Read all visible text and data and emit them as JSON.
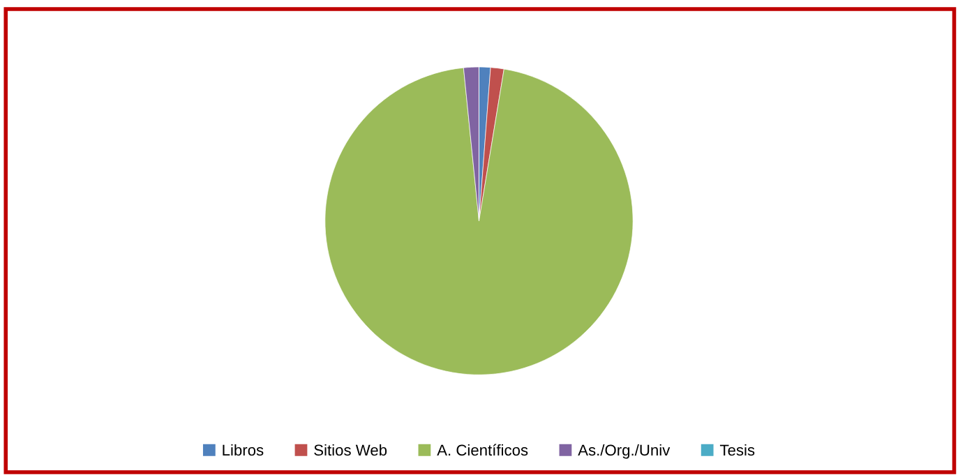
{
  "chart_data": {
    "type": "pie",
    "categories": [
      "Libros",
      "Sitios Web",
      "A. Científicos",
      "As./Org./Univ",
      "Tesis"
    ],
    "values": [
      1.2,
      1.4,
      95.8,
      1.6,
      0
    ],
    "colors": [
      "#4f81bd",
      "#c0504d",
      "#9bbb59",
      "#8064a2",
      "#4bacc6"
    ],
    "legend": "bottom"
  }
}
